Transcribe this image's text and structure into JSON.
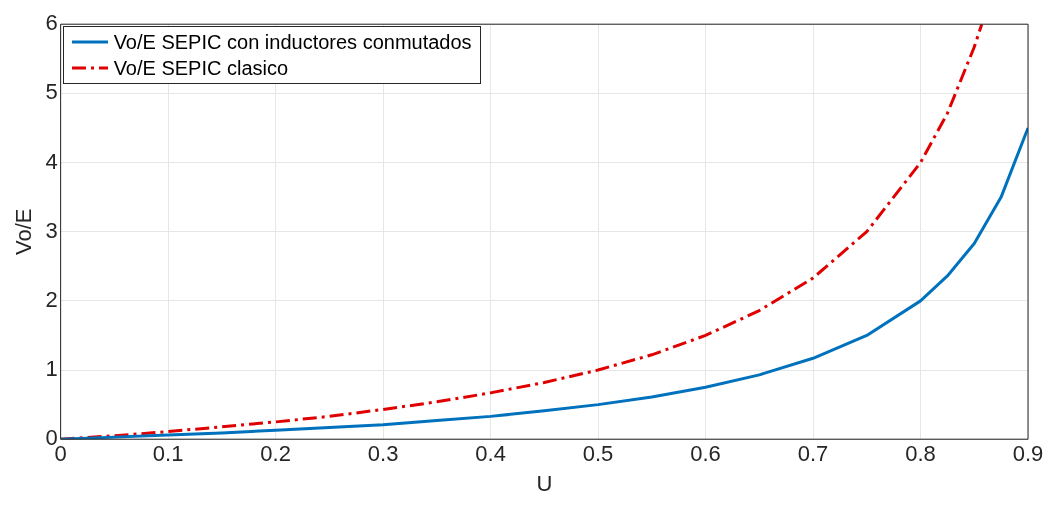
{
  "chart_data": {
    "type": "line",
    "xlabel": "U",
    "ylabel": "Vo/E",
    "xlim": [
      0,
      0.9
    ],
    "ylim": [
      0,
      6
    ],
    "xticks": [
      0,
      0.1,
      0.2,
      0.3,
      0.4,
      0.5,
      0.6,
      0.7,
      0.8,
      0.9
    ],
    "yticks": [
      0,
      1,
      2,
      3,
      4,
      5,
      6
    ],
    "grid": true,
    "legend": "top left",
    "marker": "none",
    "series": [
      {
        "name": "Vo/E SEPIC con inductores conmutados",
        "color": "#0072bd",
        "line_style": "solid",
        "x": [
          0,
          0.05,
          0.1,
          0.15,
          0.2,
          0.25,
          0.3,
          0.35,
          0.4,
          0.45,
          0.5,
          0.55,
          0.6,
          0.65,
          0.7,
          0.75,
          0.8,
          0.825,
          0.85,
          0.875,
          0.9
        ],
        "values": [
          0,
          0.03,
          0.06,
          0.09,
          0.13,
          0.17,
          0.21,
          0.27,
          0.33,
          0.41,
          0.5,
          0.61,
          0.75,
          0.93,
          1.17,
          1.5,
          2,
          2.36,
          2.83,
          3.5,
          4.5
        ]
      },
      {
        "name": "Vo/E SEPIC clasico",
        "color": "#e00000",
        "line_style": "dashed",
        "x": [
          0,
          0.05,
          0.1,
          0.15,
          0.2,
          0.25,
          0.3,
          0.35,
          0.4,
          0.45,
          0.5,
          0.55,
          0.6,
          0.65,
          0.7,
          0.75,
          0.8,
          0.825,
          0.85,
          0.857
        ],
        "values": [
          0,
          0.05,
          0.11,
          0.18,
          0.25,
          0.33,
          0.43,
          0.54,
          0.67,
          0.82,
          1,
          1.22,
          1.5,
          1.86,
          2.33,
          3,
          4,
          4.71,
          5.67,
          6
        ]
      }
    ]
  }
}
